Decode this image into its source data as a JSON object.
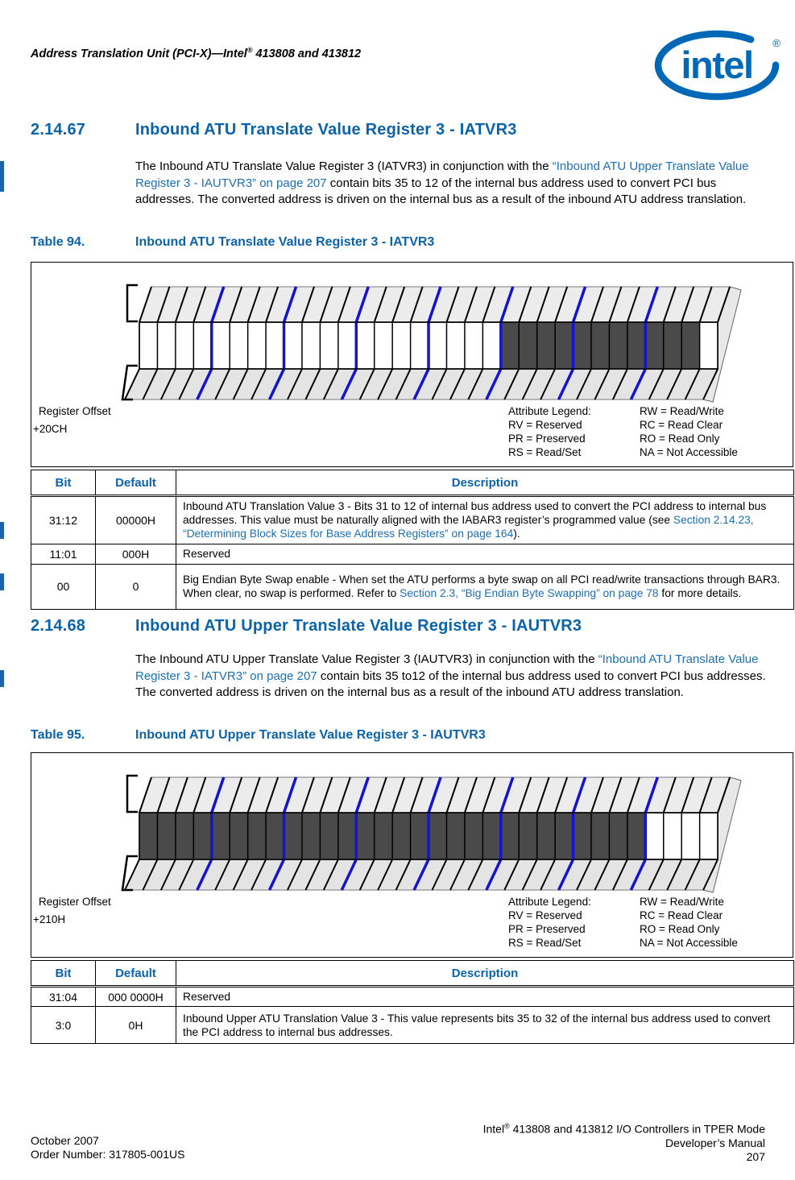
{
  "colors": {
    "heading_blue": "#0b63a9",
    "link_blue": "#1b6fb5",
    "logo_blue": "#0068b5",
    "diagram_nibble_blue": "#1414cc",
    "diagram_reserved_gray": "#4a4a4a",
    "change_bar_blue": "#1b63ad"
  },
  "header": {
    "title_pre": "Address Translation Unit (PCI-X)—Intel",
    "title_reg": "®",
    "title_post": " 413808 and 413812"
  },
  "logo": {
    "word": "intel",
    "reg": "®"
  },
  "sections": [
    {
      "number": "2.14.67",
      "title": "Inbound ATU Translate Value Register 3 - IATVR3",
      "para": {
        "pre": "The Inbound ATU Translate Value Register 3 (IATVR3) in conjunction with the ",
        "link": "“Inbound ATU Upper Translate Value Register 3 - IAUTVR3” on page 207",
        "post": " contain bits 35 to 12 of the internal bus address used to convert PCI bus addresses. The converted address is driven on the internal bus as a result of the inbound ATU address translation."
      }
    },
    {
      "number": "2.14.68",
      "title": "Inbound ATU Upper Translate Value Register 3 - IAUTVR3",
      "para": {
        "pre": "The Inbound ATU Upper Translate Value Register 3 (IAUTVR3) in conjunction with the ",
        "link": "“Inbound ATU Translate Value Register 3 - IATVR3” on page 207",
        "post": " contain bits 35 to12 of the internal bus address used to convert PCI bus addresses. The converted address is driven on the internal bus as a result of the inbound ATU address translation."
      }
    }
  ],
  "tables": [
    {
      "caption_label": "Table 94.",
      "caption_title": "Inbound ATU Translate Value Register 3 - IATVR3",
      "register_offset_label": "Register Offset",
      "register_offset": "+20CH",
      "legend_left": [
        "Attribute Legend:",
        "RV = Reserved",
        "PR = Preserved",
        "RS = Read/Set"
      ],
      "legend_right": [
        "RW = Read/Write",
        "RC = Read Clear",
        "RO = Read Only",
        "NA = Not Accessible"
      ],
      "columns": [
        "Bit",
        "Default",
        "Description"
      ],
      "diagram": {
        "cells": 32,
        "dark_start": 20,
        "dark_end": 30,
        "blue": "#1414cc",
        "dark": "#4a4a4a"
      },
      "rows": [
        {
          "bit": "31:12",
          "default": "00000H",
          "desc_pre": "Inbound ATU Translation Value 3 - Bits 31 to 12 of internal bus address used to convert the PCI address to internal bus addresses. This value must be naturally aligned with the IABAR3 register’s programmed value (see ",
          "desc_link": "Section 2.14.23, “Determining Block Sizes for Base Address Registers” on page 164",
          "desc_post": ")."
        },
        {
          "bit": "11:01",
          "default": "000H",
          "desc_pre": "Reserved",
          "desc_link": "",
          "desc_post": ""
        },
        {
          "bit": "00",
          "default": "0",
          "desc_pre": "Big Endian Byte Swap enable - When set the ATU performs a byte swap on all PCI read/write transactions through BAR3. When clear, no swap is performed. Refer to ",
          "desc_link": "Section 2.3, “Big Endian Byte Swapping” on page 78",
          "desc_post": " for more details."
        }
      ]
    },
    {
      "caption_label": "Table 95.",
      "caption_title": "Inbound ATU Upper Translate Value Register 3 - IAUTVR3",
      "register_offset_label": "Register Offset",
      "register_offset": "+210H",
      "legend_left": [
        "Attribute Legend:",
        "RV = Reserved",
        "PR = Preserved",
        "RS = Read/Set"
      ],
      "legend_right": [
        "RW = Read/Write",
        "RC = Read Clear",
        "RO = Read Only",
        "NA = Not Accessible"
      ],
      "columns": [
        "Bit",
        "Default",
        "Description"
      ],
      "diagram": {
        "cells": 32,
        "dark_start": 0,
        "dark_end": 27,
        "blue": "#1414cc",
        "dark": "#4a4a4a"
      },
      "rows": [
        {
          "bit": "31:04",
          "default": "000 0000H",
          "desc_pre": "Reserved",
          "desc_link": "",
          "desc_post": ""
        },
        {
          "bit": "3:0",
          "default": "0H",
          "desc_pre": "Inbound Upper ATU Translation Value 3 - This value represents bits 35 to 32 of the internal bus address used to convert the PCI address to internal bus addresses.",
          "desc_link": "",
          "desc_post": ""
        }
      ]
    }
  ],
  "footer": {
    "left_line1": "October 2007",
    "left_line2": "Order Number: 317805-001US",
    "right1_pre": "Intel",
    "right1_reg": "®",
    "right1_post": " 413808 and 413812 I/O Controllers in TPER Mode",
    "right_line2": "Developer’s Manual",
    "right_line3": "207"
  }
}
